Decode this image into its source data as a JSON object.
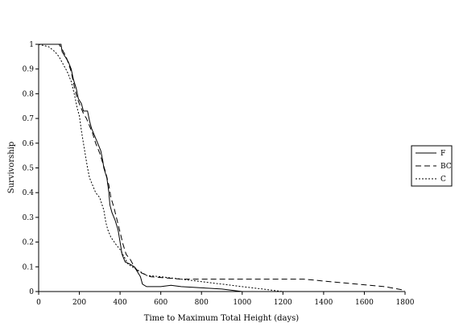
{
  "chart_data": {
    "type": "line",
    "title": "",
    "xlabel": "Time to Maximum Total Height (days)",
    "ylabel": "Survivorship",
    "xlim": [
      0,
      1800
    ],
    "ylim": [
      0,
      1
    ],
    "x_ticks": [
      "0",
      "200",
      "400",
      "600",
      "800",
      "1000",
      "1200",
      "1400",
      "1600",
      "1800"
    ],
    "y_ticks": [
      "0",
      "0.1",
      "0.2",
      "0.3",
      "0.4",
      "0.5",
      "0.6",
      "0.7",
      "0.8",
      "0.9",
      "1"
    ],
    "grid": false,
    "legend_position": "right",
    "series": [
      {
        "name": "F",
        "style": "solid",
        "points": [
          [
            0,
            1
          ],
          [
            110,
            1
          ],
          [
            115,
            0.97
          ],
          [
            130,
            0.95
          ],
          [
            145,
            0.93
          ],
          [
            160,
            0.9
          ],
          [
            170,
            0.86
          ],
          [
            185,
            0.82
          ],
          [
            195,
            0.78
          ],
          [
            210,
            0.76
          ],
          [
            220,
            0.73
          ],
          [
            240,
            0.73
          ],
          [
            250,
            0.69
          ],
          [
            260,
            0.66
          ],
          [
            275,
            0.63
          ],
          [
            290,
            0.6
          ],
          [
            305,
            0.57
          ],
          [
            315,
            0.53
          ],
          [
            320,
            0.5
          ],
          [
            335,
            0.46
          ],
          [
            345,
            0.4
          ],
          [
            350,
            0.35
          ],
          [
            360,
            0.32
          ],
          [
            375,
            0.29
          ],
          [
            390,
            0.25
          ],
          [
            400,
            0.2
          ],
          [
            410,
            0.15
          ],
          [
            425,
            0.12
          ],
          [
            450,
            0.11
          ],
          [
            470,
            0.1
          ],
          [
            485,
            0.08
          ],
          [
            500,
            0.06
          ],
          [
            510,
            0.03
          ],
          [
            530,
            0.02
          ],
          [
            600,
            0.02
          ],
          [
            650,
            0.025
          ],
          [
            700,
            0.02
          ],
          [
            800,
            0.015
          ],
          [
            900,
            0.01
          ],
          [
            1000,
            0
          ],
          [
            1220,
            0
          ]
        ]
      },
      {
        "name": "BC",
        "style": "dashed",
        "points": [
          [
            0,
            1
          ],
          [
            100,
            1
          ],
          [
            115,
            0.98
          ],
          [
            135,
            0.95
          ],
          [
            160,
            0.89
          ],
          [
            175,
            0.83
          ],
          [
            190,
            0.78
          ],
          [
            205,
            0.75
          ],
          [
            220,
            0.72
          ],
          [
            235,
            0.7
          ],
          [
            250,
            0.67
          ],
          [
            265,
            0.64
          ],
          [
            280,
            0.6
          ],
          [
            300,
            0.56
          ],
          [
            315,
            0.52
          ],
          [
            330,
            0.48
          ],
          [
            345,
            0.43
          ],
          [
            355,
            0.38
          ],
          [
            370,
            0.34
          ],
          [
            385,
            0.29
          ],
          [
            400,
            0.24
          ],
          [
            415,
            0.19
          ],
          [
            430,
            0.15
          ],
          [
            450,
            0.13
          ],
          [
            470,
            0.1
          ],
          [
            490,
            0.08
          ],
          [
            550,
            0.06
          ],
          [
            700,
            0.05
          ],
          [
            1000,
            0.05
          ],
          [
            1300,
            0.05
          ],
          [
            1500,
            0.035
          ],
          [
            1700,
            0.02
          ],
          [
            1800,
            0.005
          ]
        ]
      },
      {
        "name": "C",
        "style": "dotted",
        "points": [
          [
            0,
            1
          ],
          [
            50,
            0.99
          ],
          [
            80,
            0.97
          ],
          [
            100,
            0.95
          ],
          [
            120,
            0.92
          ],
          [
            140,
            0.89
          ],
          [
            160,
            0.85
          ],
          [
            175,
            0.8
          ],
          [
            190,
            0.74
          ],
          [
            200,
            0.71
          ],
          [
            210,
            0.65
          ],
          [
            220,
            0.6
          ],
          [
            230,
            0.55
          ],
          [
            240,
            0.5
          ],
          [
            250,
            0.46
          ],
          [
            265,
            0.43
          ],
          [
            280,
            0.4
          ],
          [
            300,
            0.38
          ],
          [
            320,
            0.33
          ],
          [
            330,
            0.28
          ],
          [
            340,
            0.25
          ],
          [
            355,
            0.22
          ],
          [
            380,
            0.19
          ],
          [
            400,
            0.17
          ],
          [
            420,
            0.14
          ],
          [
            440,
            0.11
          ],
          [
            460,
            0.1
          ],
          [
            480,
            0.09
          ],
          [
            500,
            0.08
          ],
          [
            530,
            0.065
          ],
          [
            600,
            0.06
          ],
          [
            700,
            0.05
          ],
          [
            800,
            0.04
          ],
          [
            900,
            0.03
          ],
          [
            1000,
            0.02
          ],
          [
            1100,
            0.01
          ],
          [
            1200,
            0
          ],
          [
            1220,
            0
          ]
        ]
      }
    ]
  }
}
